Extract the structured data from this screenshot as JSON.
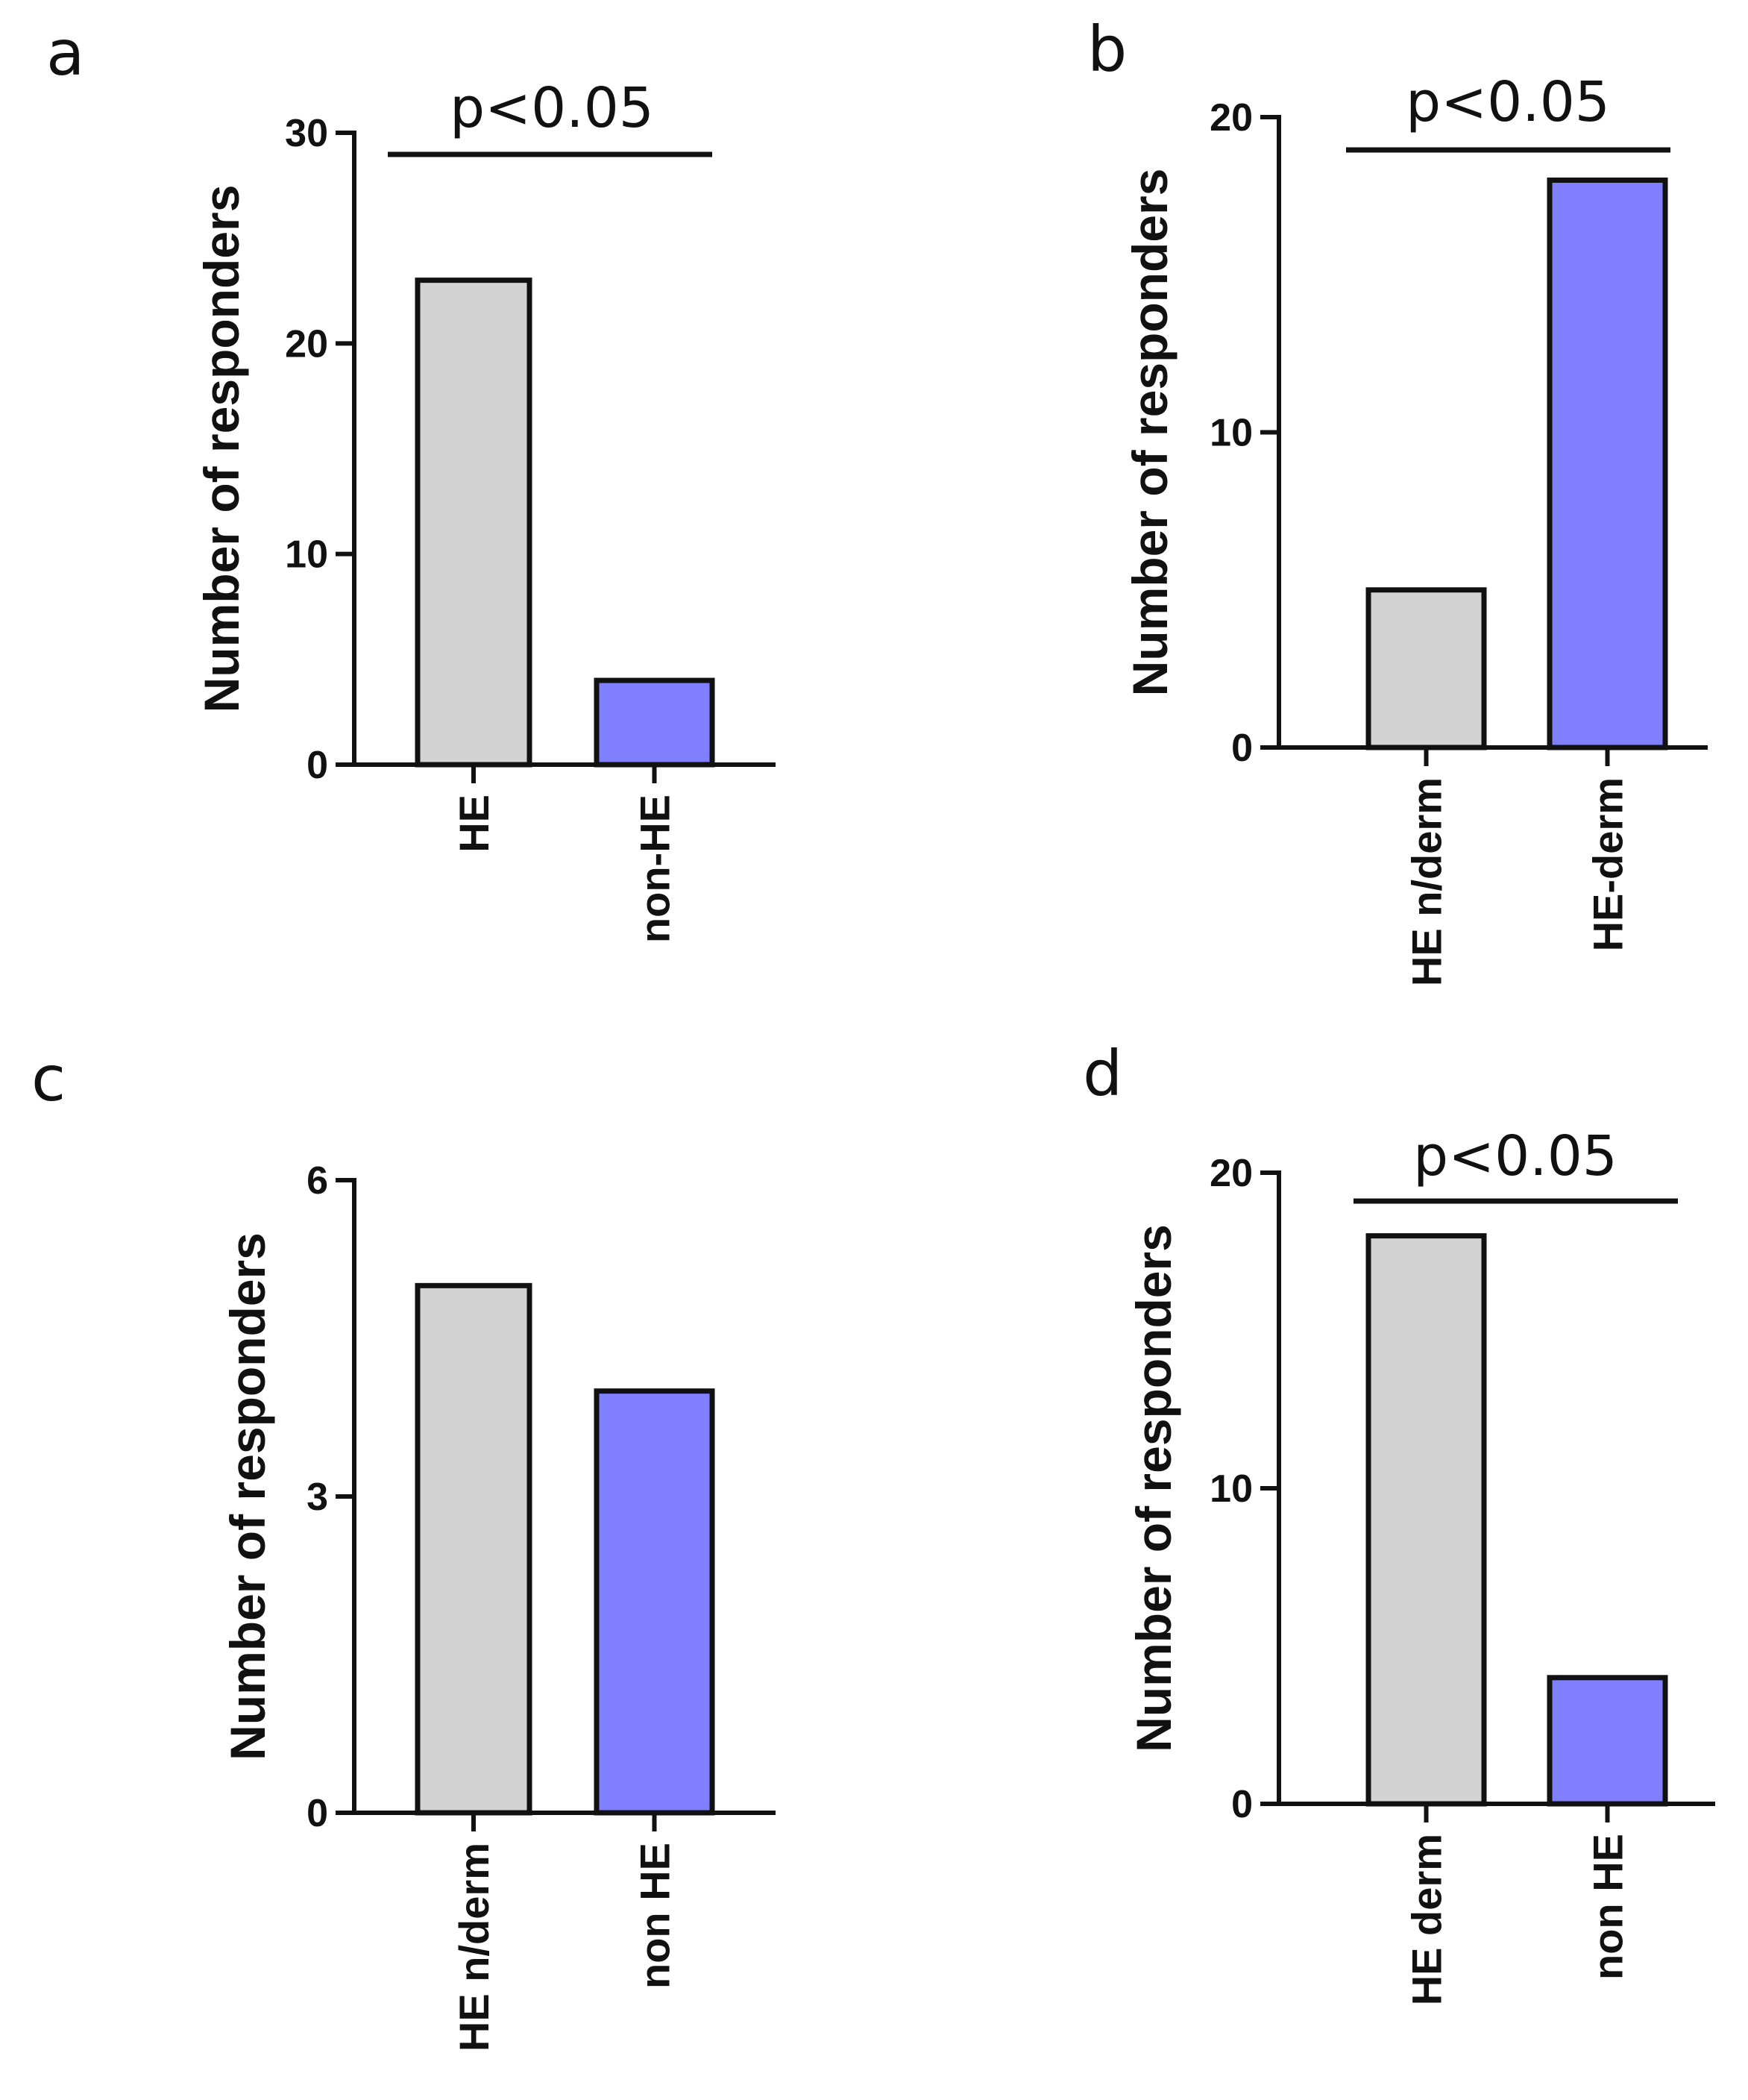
{
  "chart_data": [
    {
      "type": "bar",
      "panel_label": "a",
      "ylabel": "Number of responders",
      "categories": [
        "HE",
        "non-HE"
      ],
      "values": [
        23,
        4
      ],
      "colors": [
        "#d3d3d3",
        "#8080ff"
      ],
      "ylim": [
        0,
        30
      ],
      "yticks": [
        0,
        10,
        20,
        30
      ],
      "significance": "p<0.05"
    },
    {
      "type": "bar",
      "panel_label": "b",
      "ylabel": "Number of responders",
      "categories": [
        "HE n/derm",
        "HE-derm"
      ],
      "values": [
        5,
        18
      ],
      "colors": [
        "#d3d3d3",
        "#8080ff"
      ],
      "ylim": [
        0,
        20
      ],
      "yticks": [
        0,
        10,
        20
      ],
      "significance": "p<0.05"
    },
    {
      "type": "bar",
      "panel_label": "c",
      "ylabel": "Number of responders",
      "categories": [
        "HE n/derm",
        "non HE"
      ],
      "values": [
        5,
        4
      ],
      "colors": [
        "#d3d3d3",
        "#8080ff"
      ],
      "ylim": [
        0,
        6
      ],
      "yticks": [
        0,
        3,
        6
      ],
      "significance": ""
    },
    {
      "type": "bar",
      "panel_label": "d",
      "ylabel": "Number of responders",
      "categories": [
        "HE derm",
        "non HE"
      ],
      "values": [
        18,
        4
      ],
      "colors": [
        "#d3d3d3",
        "#8080ff"
      ],
      "ylim": [
        0,
        20
      ],
      "yticks": [
        0,
        10,
        20
      ],
      "significance": "p<0.05"
    }
  ]
}
